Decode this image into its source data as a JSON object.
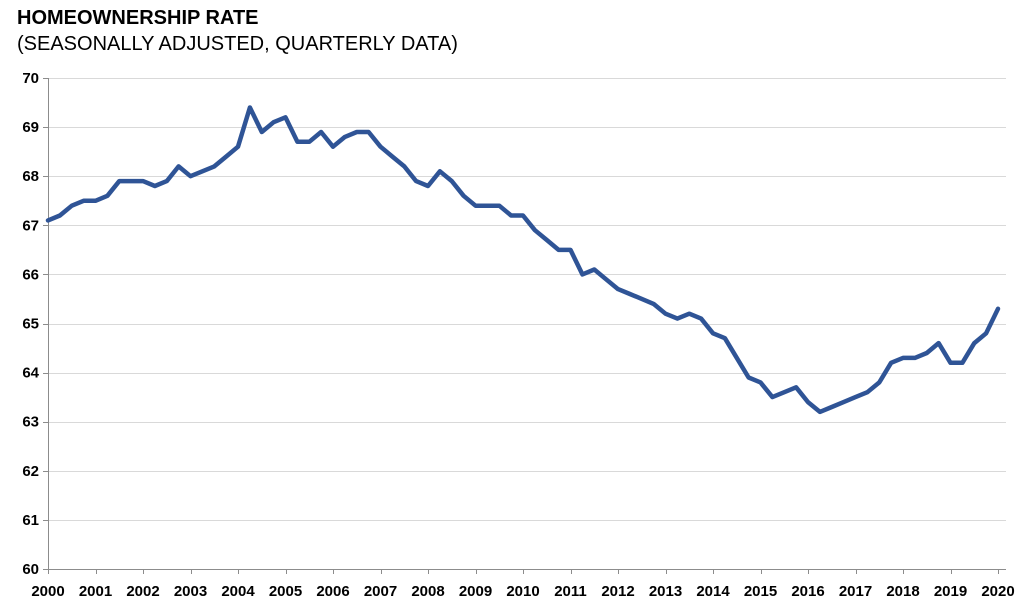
{
  "header": {
    "title": "HOMEOWNERSHIP RATE",
    "subtitle": "(SEASONALLY ADJUSTED, QUARTERLY DATA)"
  },
  "colors": {
    "line": "#2F5496",
    "gridline": "#D9D9D9",
    "axis": "#8C8C8C",
    "text": "#000000",
    "background": "#FFFFFF"
  },
  "chart_data": {
    "type": "line",
    "title": "HOMEOWNERSHIP RATE",
    "subtitle": "(SEASONALLY ADJUSTED, QUARTERLY DATA)",
    "grid": "horizontal",
    "legend": "none",
    "x_start_year": 2000,
    "x_step_years": 0.25,
    "x_tick_labels": [
      "2000",
      "2001",
      "2002",
      "2003",
      "2004",
      "2005",
      "2006",
      "2007",
      "2008",
      "2009",
      "2010",
      "2011",
      "2012",
      "2013",
      "2014",
      "2015",
      "2016",
      "2017",
      "2018",
      "2019",
      "2020"
    ],
    "ylim": [
      60,
      70
    ],
    "y_ticks": [
      60,
      61,
      62,
      63,
      64,
      65,
      66,
      67,
      68,
      69,
      70
    ],
    "series": [
      {
        "name": "Homeownership rate (percent, quarterly, seasonally adjusted)",
        "color": "#2F5496",
        "values": [
          67.1,
          67.2,
          67.4,
          67.5,
          67.5,
          67.6,
          67.9,
          67.9,
          67.9,
          67.8,
          67.9,
          68.2,
          68.0,
          68.1,
          68.2,
          68.4,
          68.6,
          69.4,
          68.9,
          69.1,
          69.2,
          68.7,
          68.7,
          68.9,
          68.6,
          68.8,
          68.9,
          68.9,
          68.6,
          68.4,
          68.2,
          67.9,
          67.8,
          68.1,
          67.9,
          67.6,
          67.4,
          67.4,
          67.4,
          67.2,
          67.2,
          66.9,
          66.7,
          66.5,
          66.5,
          66.0,
          66.1,
          65.9,
          65.7,
          65.6,
          65.5,
          65.4,
          65.2,
          65.1,
          65.2,
          65.1,
          64.8,
          64.7,
          64.3,
          63.9,
          63.8,
          63.5,
          63.6,
          63.7,
          63.4,
          63.2,
          63.3,
          63.4,
          63.5,
          63.6,
          63.8,
          64.2,
          64.3,
          64.3,
          64.4,
          64.6,
          64.2,
          64.2,
          64.6,
          64.8,
          65.3
        ]
      }
    ]
  }
}
